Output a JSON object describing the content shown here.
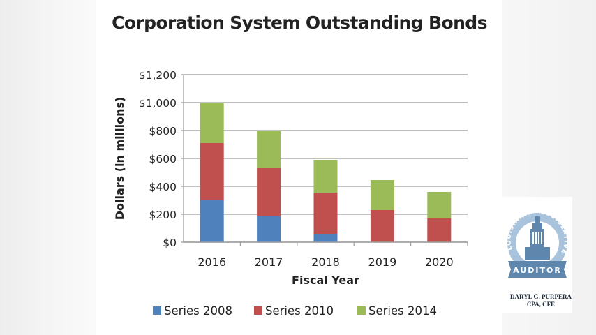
{
  "chart_data": {
    "type": "bar",
    "stacked": true,
    "title": "Corporation System Outstanding Bonds",
    "xlabel": "Fiscal Year",
    "ylabel": "Dollars (in millions)",
    "categories": [
      "2016",
      "2017",
      "2018",
      "2019",
      "2020"
    ],
    "series": [
      {
        "name": "Series 2008",
        "color": "#4f81bd",
        "values": [
          300,
          185,
          60,
          0,
          0
        ]
      },
      {
        "name": "Series 2010",
        "color": "#c0504d",
        "values": [
          410,
          350,
          295,
          230,
          170
        ]
      },
      {
        "name": "Series 2014",
        "color": "#9bbb59",
        "values": [
          290,
          265,
          235,
          215,
          190
        ]
      }
    ],
    "ylim": [
      0,
      1200
    ],
    "yticks": [
      0,
      200,
      400,
      600,
      800,
      1000,
      1200
    ],
    "ytick_labels": [
      "$0",
      "$200",
      "$400",
      "$600",
      "$800",
      "$1,000",
      "$1,200"
    ],
    "grid": true,
    "legend_position": "bottom"
  },
  "logo": {
    "arc_text_left": "LOUISIANA",
    "arc_text_right": "LEGISLATIVE",
    "banner_text": "AUDITOR",
    "name_line1": "DARYL G. PURPERA",
    "name_line2": "CPA, CFE"
  }
}
